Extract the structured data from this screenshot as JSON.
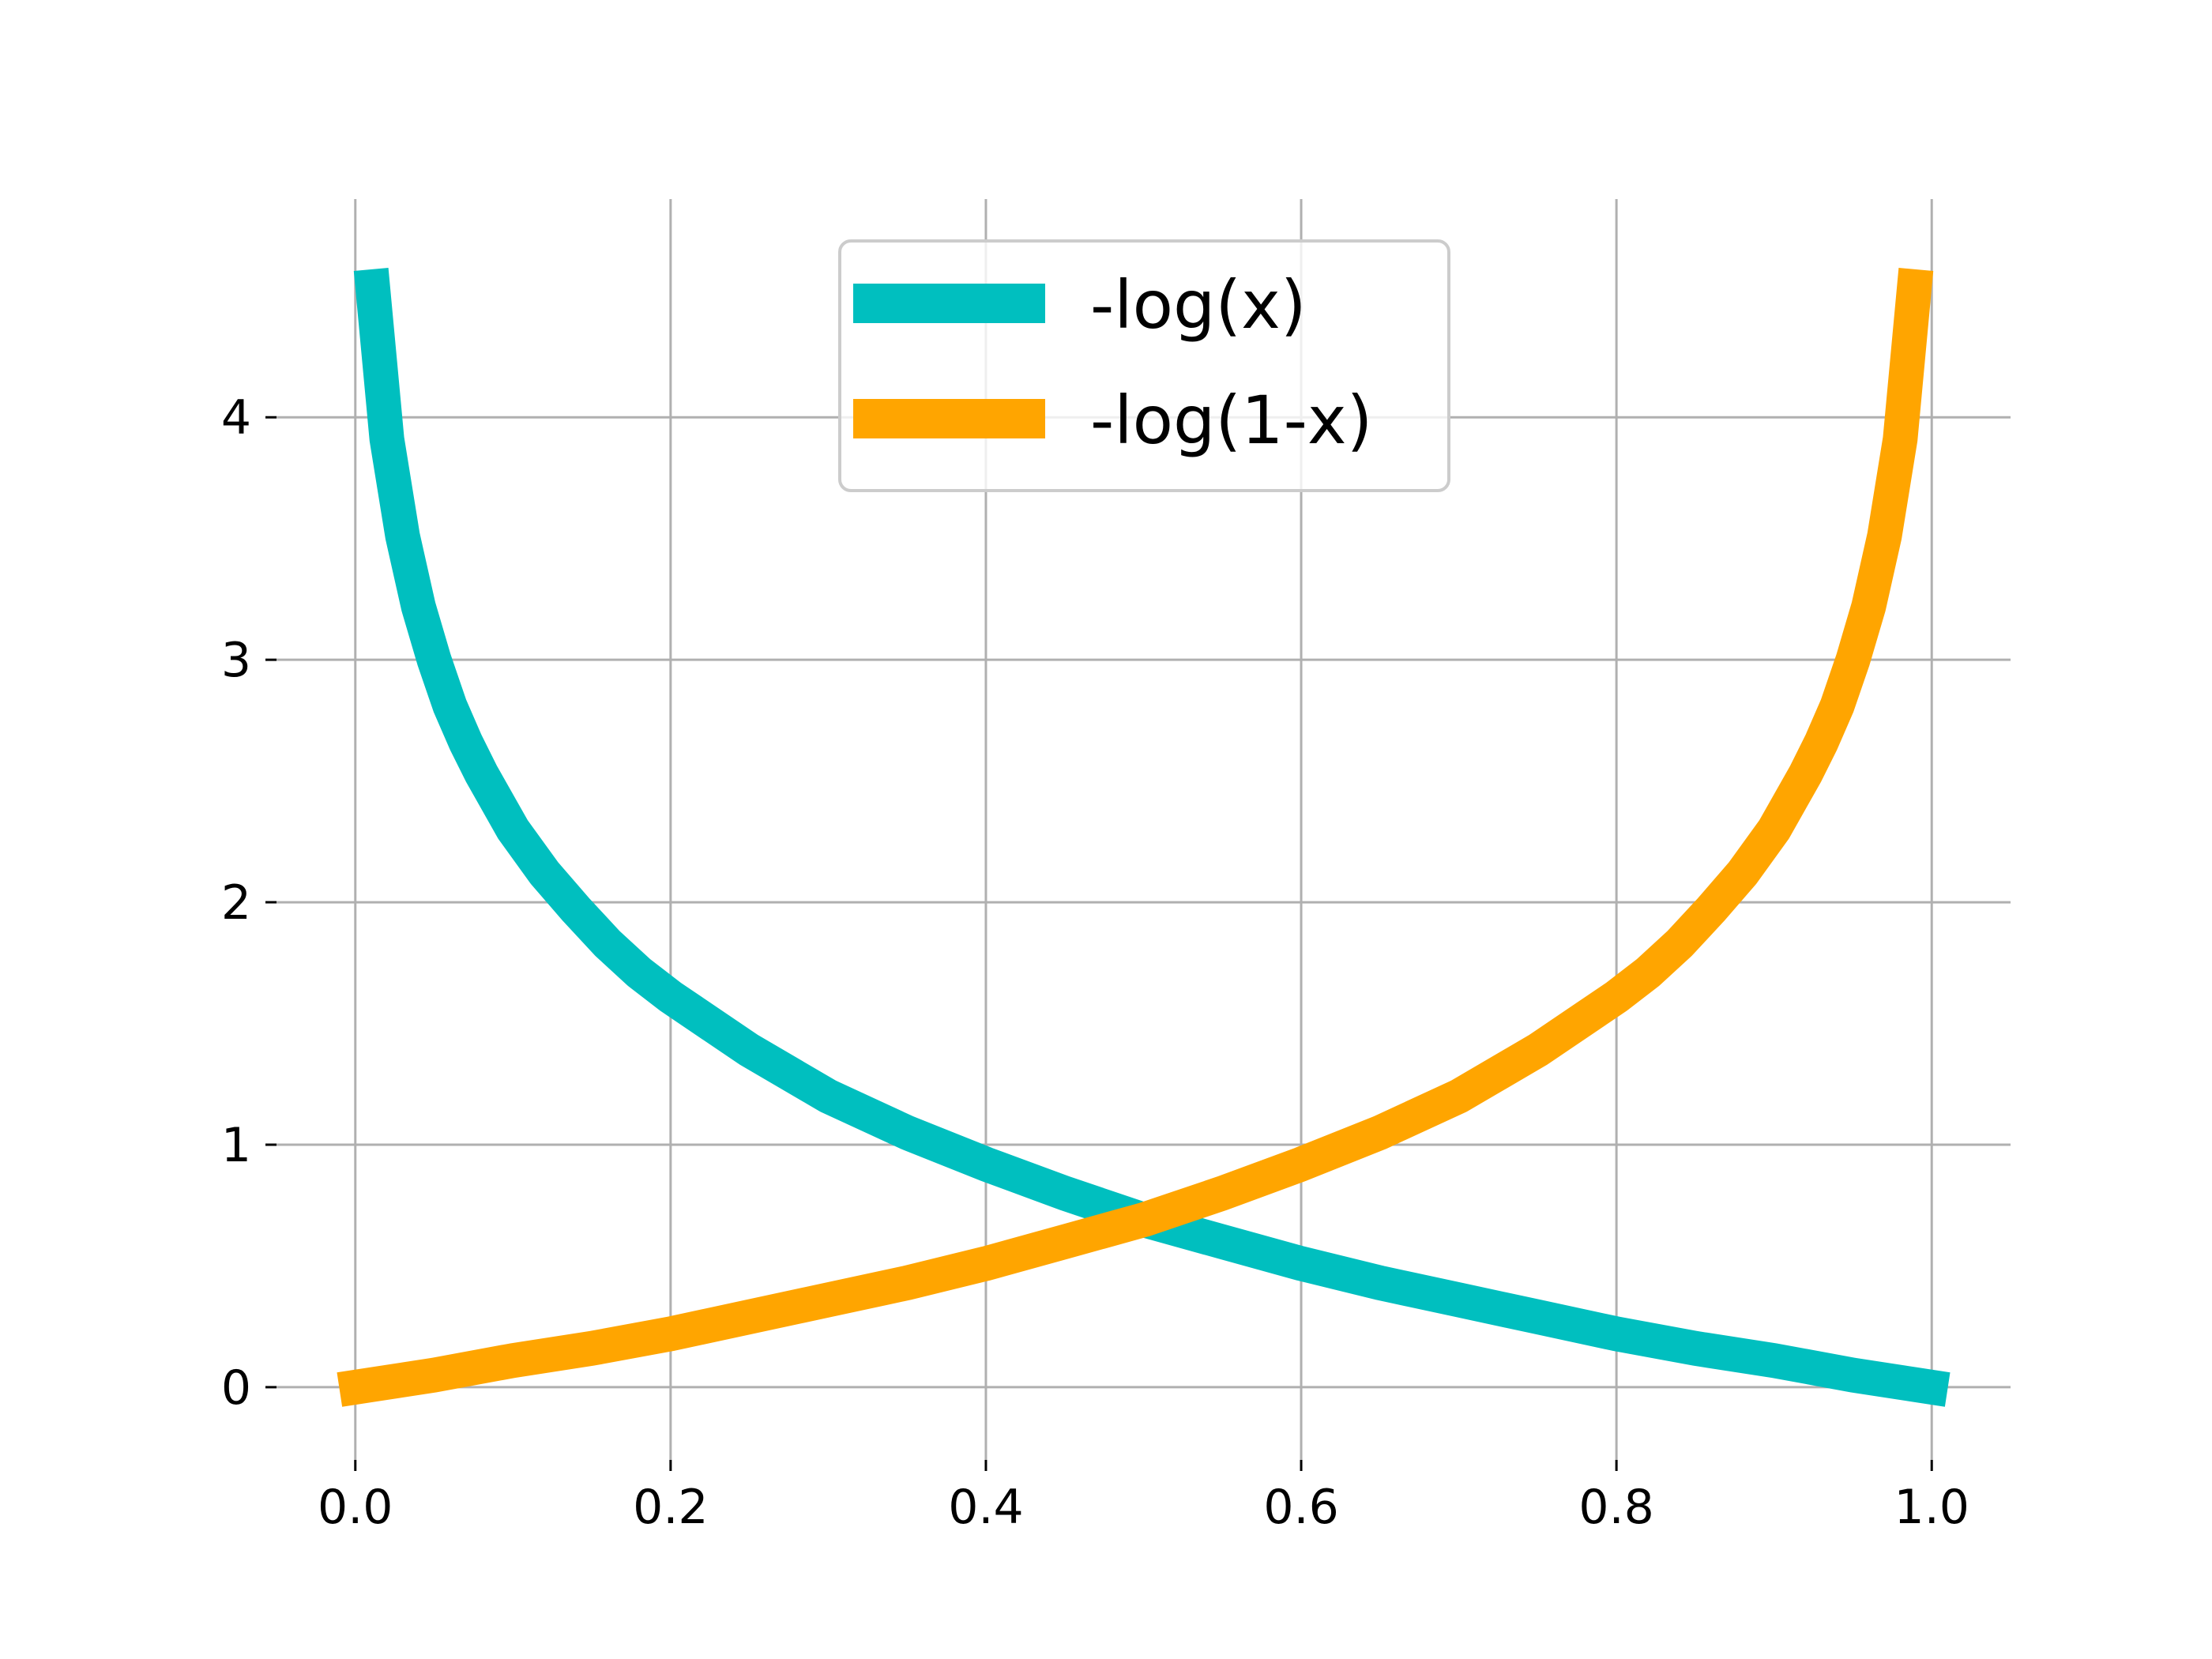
{
  "chart_data": {
    "type": "line",
    "title": "",
    "xlabel": "",
    "ylabel": "",
    "xlim": [
      -0.05,
      1.05
    ],
    "ylim": [
      -0.3,
      4.9
    ],
    "xticks": [
      0.0,
      0.2,
      0.4,
      0.6,
      0.8,
      1.0
    ],
    "xtick_labels": [
      "0.0",
      "0.2",
      "0.4",
      "0.6",
      "0.8",
      "1.0"
    ],
    "yticks": [
      0,
      1,
      2,
      3,
      4
    ],
    "ytick_labels": [
      "0",
      "1",
      "2",
      "3",
      "4"
    ],
    "grid": true,
    "legend": {
      "placement": "upper center"
    },
    "series": [
      {
        "name": "-log(x)",
        "color": "#00bfbf",
        "x": [
          0.01,
          0.02,
          0.03,
          0.04,
          0.05,
          0.06,
          0.07,
          0.08,
          0.1,
          0.12,
          0.14,
          0.16,
          0.18,
          0.2,
          0.25,
          0.3,
          0.35,
          0.4,
          0.45,
          0.5,
          0.55,
          0.6,
          0.65,
          0.7,
          0.75,
          0.8,
          0.85,
          0.9,
          0.95,
          0.99,
          1.01
        ],
        "y": [
          4.61,
          3.91,
          3.51,
          3.22,
          3.0,
          2.81,
          2.66,
          2.53,
          2.3,
          2.12,
          1.97,
          1.83,
          1.71,
          1.61,
          1.39,
          1.2,
          1.05,
          0.92,
          0.8,
          0.69,
          0.6,
          0.51,
          0.43,
          0.36,
          0.29,
          0.22,
          0.16,
          0.11,
          0.05,
          0.01,
          -0.01
        ]
      },
      {
        "name": "-log(1-x)",
        "color": "#ffa500",
        "x": [
          -0.01,
          0.01,
          0.05,
          0.1,
          0.15,
          0.2,
          0.25,
          0.3,
          0.35,
          0.4,
          0.45,
          0.5,
          0.55,
          0.6,
          0.65,
          0.7,
          0.75,
          0.8,
          0.82,
          0.84,
          0.86,
          0.88,
          0.9,
          0.92,
          0.93,
          0.94,
          0.95,
          0.96,
          0.97,
          0.98,
          0.99
        ],
        "y": [
          -0.01,
          0.01,
          0.05,
          0.11,
          0.16,
          0.22,
          0.29,
          0.36,
          0.43,
          0.51,
          0.6,
          0.69,
          0.8,
          0.92,
          1.05,
          1.2,
          1.39,
          1.61,
          1.71,
          1.83,
          1.97,
          2.12,
          2.3,
          2.53,
          2.66,
          2.81,
          3.0,
          3.22,
          3.51,
          3.91,
          4.61
        ]
      }
    ]
  }
}
